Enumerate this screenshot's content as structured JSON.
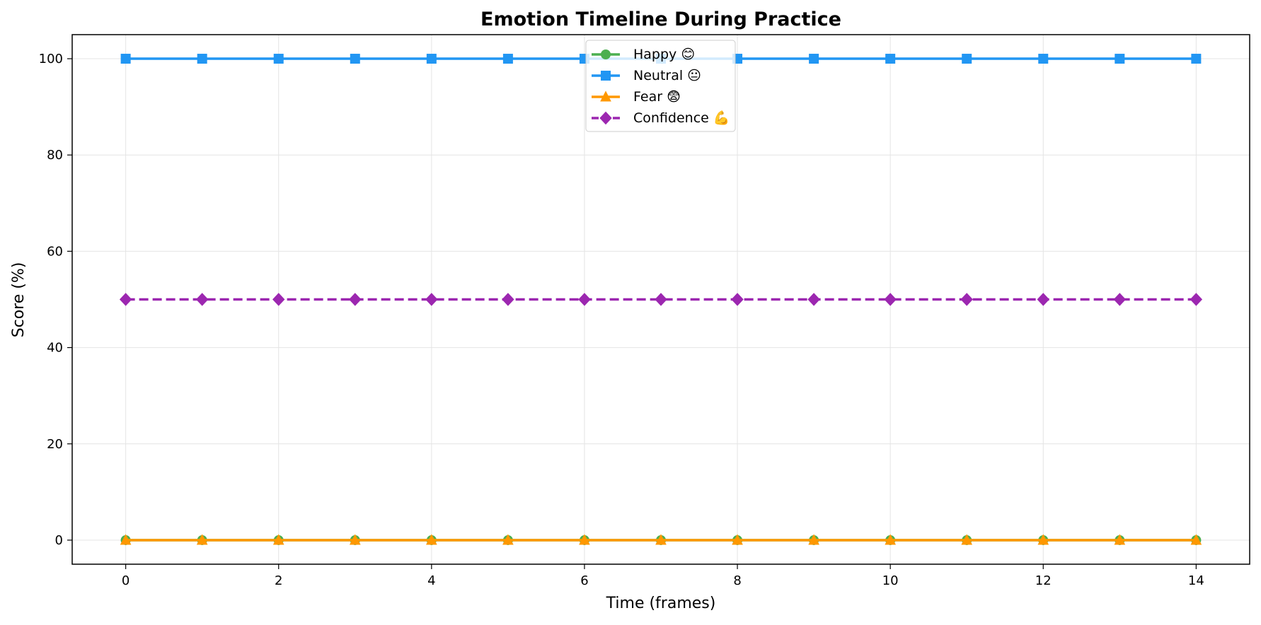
{
  "chart_data": {
    "type": "line",
    "title": "Emotion Timeline During Practice",
    "xlabel": "Time (frames)",
    "ylabel": "Score (%)",
    "x": [
      0,
      1,
      2,
      3,
      4,
      5,
      6,
      7,
      8,
      9,
      10,
      11,
      12,
      13,
      14
    ],
    "xlim": [
      -0.7,
      14.7
    ],
    "ylim": [
      -5,
      105
    ],
    "xticks": [
      0,
      2,
      4,
      6,
      8,
      10,
      12,
      14
    ],
    "yticks": [
      0,
      20,
      40,
      60,
      80,
      100
    ],
    "grid": true,
    "legend_position": "upper center",
    "series": [
      {
        "name": "Happy 😊",
        "color": "#4CAF50",
        "marker": "circle",
        "line_style": "solid",
        "values": [
          0,
          0,
          0,
          0,
          0,
          0,
          0,
          0,
          0,
          0,
          0,
          0,
          0,
          0,
          0
        ]
      },
      {
        "name": "Neutral 😐",
        "color": "#2196F3",
        "marker": "square",
        "line_style": "solid",
        "values": [
          100,
          100,
          100,
          100,
          100,
          100,
          100,
          100,
          100,
          100,
          100,
          100,
          100,
          100,
          100
        ]
      },
      {
        "name": "Fear 😨",
        "color": "#FF9800",
        "marker": "triangle",
        "line_style": "solid",
        "values": [
          0,
          0,
          0,
          0,
          0,
          0,
          0,
          0,
          0,
          0,
          0,
          0,
          0,
          0,
          0
        ]
      },
      {
        "name": "Confidence 💪",
        "color": "#9C27B0",
        "marker": "diamond",
        "line_style": "dashed",
        "values": [
          50,
          50,
          50,
          50,
          50,
          50,
          50,
          50,
          50,
          50,
          50,
          50,
          50,
          50,
          50
        ]
      }
    ]
  }
}
